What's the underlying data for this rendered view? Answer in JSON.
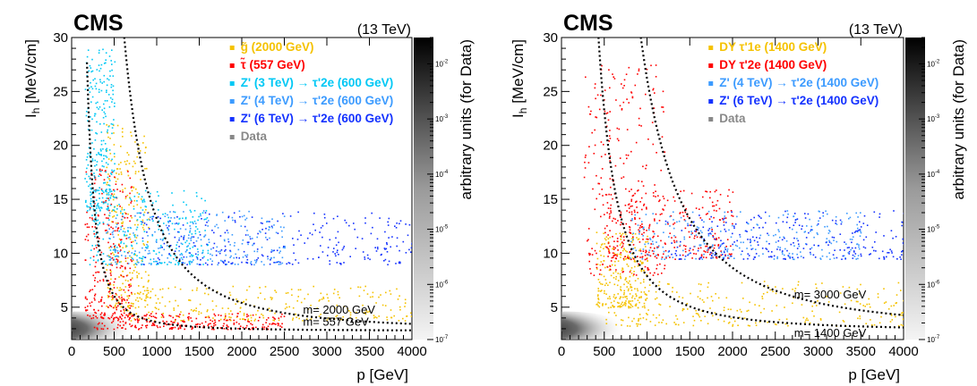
{
  "chart_data": [
    {
      "type": "scatter",
      "experiment_label": "CMS",
      "energy_label": "(13 TeV)",
      "xlabel": "p [GeV]",
      "ylabel": "I_h [MeV/cm]",
      "zlabel": "arbitrary units (for Data)",
      "xlim": [
        0,
        4000
      ],
      "ylim": [
        2,
        30
      ],
      "x_ticks": [
        0,
        500,
        1000,
        1500,
        2000,
        2500,
        3000,
        3500,
        4000
      ],
      "y_ticks": [
        5,
        10,
        15,
        20,
        25,
        30
      ],
      "z_ticks": [
        "10^-7",
        "10^-6",
        "10^-5",
        "10^-4",
        "10^-3",
        "10^-2"
      ],
      "z_scale": "log",
      "z_range": [
        1e-07,
        0.03
      ],
      "legend_position": "top-right",
      "series": [
        {
          "name": "g̃ (2000 GeV)",
          "color": "#f5c200",
          "mass": 2000,
          "regions": [
            [
              600,
              4000,
              3.8,
              7.0
            ],
            [
              400,
              900,
              5.0,
              22.0
            ]
          ]
        },
        {
          "name": "τ̃ (557 GeV)",
          "color": "#ff0000",
          "mass": 557,
          "regions": [
            [
              250,
              2500,
              3.0,
              4.5
            ],
            [
              150,
              700,
              4.0,
              18.0
            ]
          ]
        },
        {
          "name": "Z' (3 TeV) → τ'2e (600 GeV)",
          "color": "#00c8f5",
          "mass": 600,
          "regions": [
            [
              200,
              1600,
              9.0,
              16.0
            ],
            [
              150,
              500,
              14.0,
              29.0
            ]
          ]
        },
        {
          "name": "Z' (4 TeV) → τ'2e (600 GeV)",
          "color": "#3c9bff",
          "mass": 600,
          "regions": [
            [
              400,
              2500,
              9.0,
              14.0
            ]
          ]
        },
        {
          "name": "Z' (6 TeV) → τ'2e (600 GeV)",
          "color": "#1432ff",
          "mass": 600,
          "regions": [
            [
              800,
              4000,
              9.0,
              14.0
            ]
          ]
        },
        {
          "name": "Data",
          "color": "#888888",
          "regions": [
            [
              0,
              300,
              2.5,
              3.5
            ]
          ]
        }
      ],
      "annotations": [
        {
          "text": "m= 2000 GeV",
          "mass": 2000
        },
        {
          "text": "m= 557 GeV",
          "mass": 557
        }
      ]
    },
    {
      "type": "scatter",
      "experiment_label": "CMS",
      "energy_label": "(13 TeV)",
      "xlabel": "p [GeV]",
      "ylabel": "I_h [MeV/cm]",
      "zlabel": "arbitrary units (for Data)",
      "xlim": [
        0,
        4000
      ],
      "ylim": [
        2,
        30
      ],
      "x_ticks": [
        0,
        500,
        1000,
        1500,
        2000,
        2500,
        3000,
        3500,
        4000
      ],
      "y_ticks": [
        5,
        10,
        15,
        20,
        25,
        30
      ],
      "z_ticks": [
        "10^-7",
        "10^-6",
        "10^-5",
        "10^-4",
        "10^-3",
        "10^-2"
      ],
      "z_scale": "log",
      "z_range": [
        1e-07,
        0.03
      ],
      "legend_position": "top-right",
      "series": [
        {
          "name": "DY τ'1e (1400 GeV)",
          "color": "#f5c200",
          "mass": 1400,
          "regions": [
            [
              500,
              4000,
              3.3,
              7.5
            ],
            [
              400,
              1000,
              5.0,
              12.0
            ]
          ]
        },
        {
          "name": "DY τ'2e (1400 GeV)",
          "color": "#ff0000",
          "mass": 1400,
          "regions": [
            [
              250,
              1200,
              8.0,
              28.0
            ],
            [
              500,
              2000,
              9.5,
              16.0
            ]
          ]
        },
        {
          "name": "Z' (4 TeV) → τ'2e (1400 GeV)",
          "color": "#3c9bff",
          "mass": 1400,
          "regions": [
            [
              800,
              3500,
              9.5,
              14.0
            ]
          ]
        },
        {
          "name": "Z' (6 TeV) → τ'2e (1400 GeV)",
          "color": "#1432ff",
          "mass": 1400,
          "regions": [
            [
              1200,
              4000,
              9.5,
              14.0
            ]
          ]
        },
        {
          "name": "Data",
          "color": "#888888",
          "regions": [
            [
              0,
              300,
              2.5,
              3.5
            ]
          ]
        }
      ],
      "annotations": [
        {
          "text": "m= 3000 GeV",
          "mass": 3000
        },
        {
          "text": "m= 1400 GeV",
          "mass": 1400
        }
      ]
    }
  ]
}
